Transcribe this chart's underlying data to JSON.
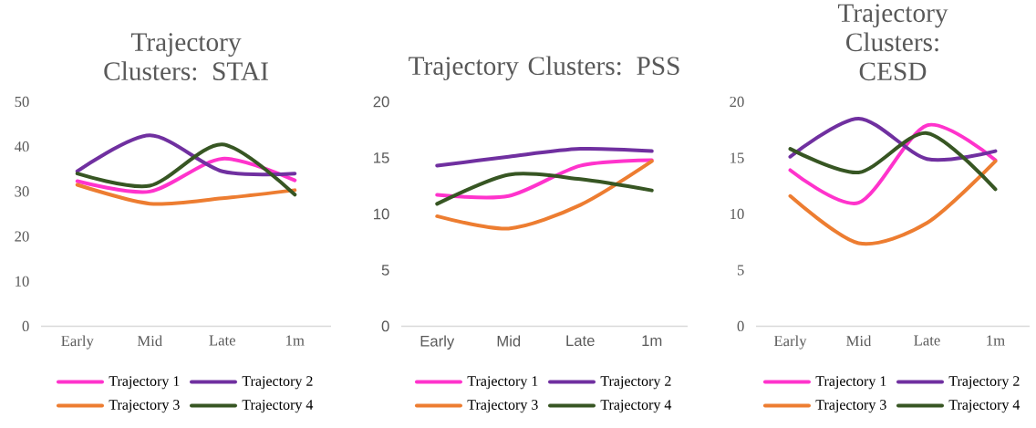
{
  "chart_data": [
    {
      "type": "line",
      "title": "Trajectory Clusters: STAI",
      "categories": [
        "Early",
        "Mid",
        "Late",
        "1m"
      ],
      "ylim": [
        0,
        50
      ],
      "yticks": [
        0,
        10,
        20,
        30,
        40,
        50
      ],
      "legend": "bottom",
      "series": [
        {
          "name": "Trajectory 1",
          "color": "#ff33cc",
          "values": [
            32.3,
            30,
            37.3,
            32.5
          ]
        },
        {
          "name": "Trajectory 2",
          "color": "#7030a0",
          "values": [
            34.5,
            42.5,
            34.5,
            34
          ]
        },
        {
          "name": "Trajectory 3",
          "color": "#ed7d31",
          "values": [
            31.5,
            27.3,
            28.5,
            30.3
          ]
        },
        {
          "name": "Trajectory 4",
          "color": "#375623",
          "values": [
            34,
            31.3,
            40.5,
            29.3
          ]
        }
      ]
    },
    {
      "type": "line",
      "title": "Trajectory Clusters: PSS",
      "categories": [
        "Early",
        "Mid",
        "Late",
        "1m"
      ],
      "ylim": [
        0,
        20
      ],
      "yticks": [
        0,
        5,
        10,
        15,
        20
      ],
      "legend": "bottom",
      "series": [
        {
          "name": "Trajectory 1",
          "color": "#ff33cc",
          "values": [
            11.7,
            11.6,
            14.3,
            14.8
          ]
        },
        {
          "name": "Trajectory 2",
          "color": "#7030a0",
          "values": [
            14.3,
            15.1,
            15.8,
            15.6
          ]
        },
        {
          "name": "Trajectory 3",
          "color": "#ed7d31",
          "values": [
            9.8,
            8.7,
            10.8,
            14.7
          ]
        },
        {
          "name": "Trajectory 4",
          "color": "#375623",
          "values": [
            10.9,
            13.5,
            13.1,
            12.1
          ]
        }
      ]
    },
    {
      "type": "line",
      "title": "Trajectory Clusters: CESD",
      "categories": [
        "Early",
        "Mid",
        "Late",
        "1m"
      ],
      "ylim": [
        0,
        20
      ],
      "yticks": [
        0,
        5,
        10,
        15,
        20
      ],
      "legend": "bottom",
      "series": [
        {
          "name": "Trajectory 1",
          "color": "#ff33cc",
          "values": [
            13.9,
            11,
            17.9,
            14.8
          ]
        },
        {
          "name": "Trajectory 2",
          "color": "#7030a0",
          "values": [
            15.1,
            18.5,
            14.9,
            15.6
          ]
        },
        {
          "name": "Trajectory 3",
          "color": "#ed7d31",
          "values": [
            11.6,
            7.4,
            9.2,
            14.7
          ]
        },
        {
          "name": "Trajectory 4",
          "color": "#375623",
          "values": [
            15.8,
            13.7,
            17.2,
            12.2
          ]
        }
      ]
    }
  ]
}
